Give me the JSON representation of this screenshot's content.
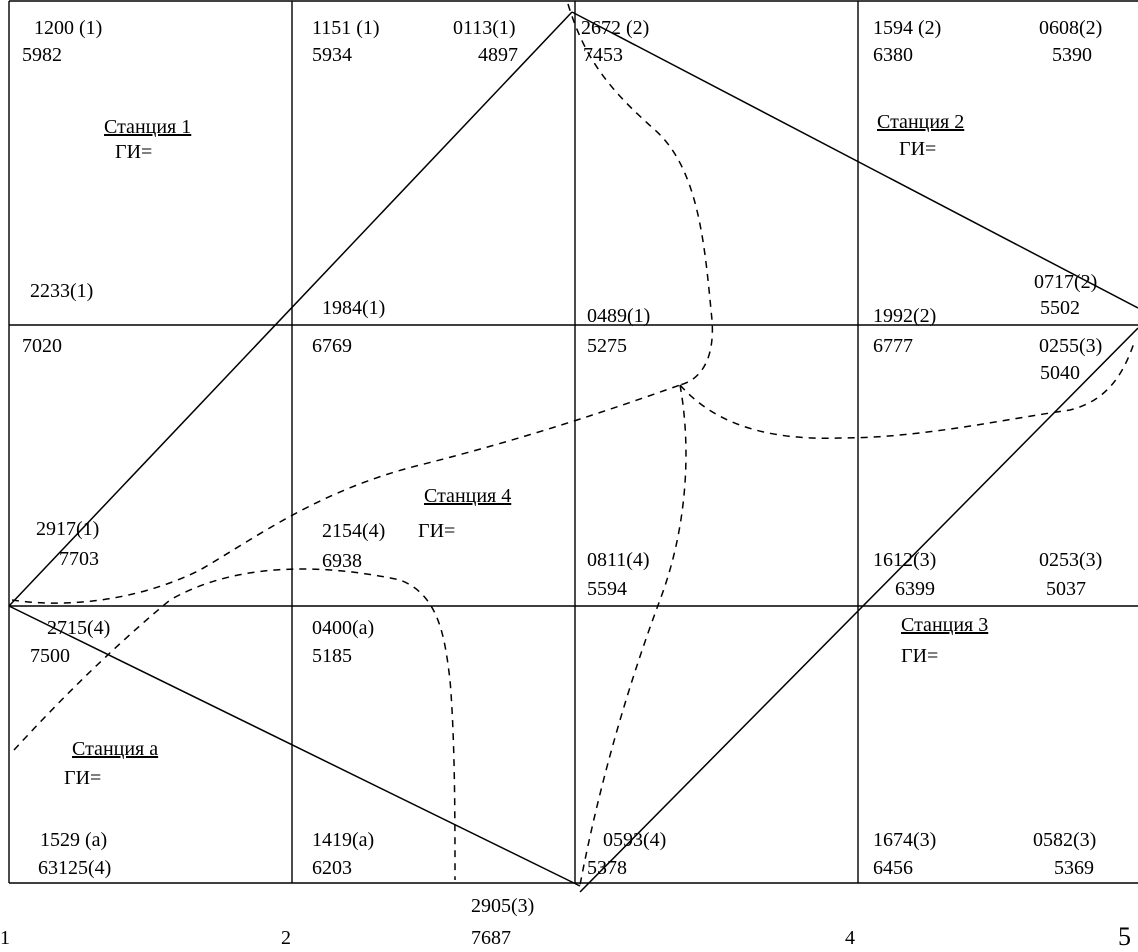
{
  "grid": {
    "points": [
      {
        "id": "p01",
        "top": "1200 (1)",
        "bottom": "5982"
      },
      {
        "id": "p02",
        "top": "1151 (1)",
        "bottom": "5934"
      },
      {
        "id": "p03",
        "top": "0113(1)",
        "bottom": "4897"
      },
      {
        "id": "p04",
        "top": "2672 (2)",
        "bottom": "7453"
      },
      {
        "id": "p05",
        "top": "1594 (2)",
        "bottom": "6380"
      },
      {
        "id": "p06",
        "top": "0608(2)",
        "bottom": "5390"
      },
      {
        "id": "p07",
        "top": "2233(1)",
        "bottom": "7020"
      },
      {
        "id": "p08",
        "top": "1984(1)",
        "bottom": "6769"
      },
      {
        "id": "p09",
        "top": "0489(1)",
        "bottom": "5275"
      },
      {
        "id": "p10",
        "top": "1992(2)",
        "bottom": "6777"
      },
      {
        "id": "p11",
        "top": "0717(2)",
        "bottom": "5502"
      },
      {
        "id": "p12",
        "top": "0255(3)",
        "bottom": "5040"
      },
      {
        "id": "p13",
        "top": "2917(1)",
        "bottom": "7703"
      },
      {
        "id": "p14",
        "top": "2154(4)",
        "bottom": "6938"
      },
      {
        "id": "p15",
        "top": "0811(4)",
        "bottom": "5594"
      },
      {
        "id": "p16",
        "top": "1612(3)",
        "bottom": "6399"
      },
      {
        "id": "p17",
        "top": "0253(3)",
        "bottom": "5037"
      },
      {
        "id": "p18",
        "top": "2715(4)",
        "bottom": "7500"
      },
      {
        "id": "p19",
        "top": "0400(a)",
        "bottom": "5185"
      },
      {
        "id": "p20",
        "top": "1529 (a)",
        "bottom": "63125(4)"
      },
      {
        "id": "p21",
        "top": "1419(a)",
        "bottom": "6203"
      },
      {
        "id": "p22",
        "top": "0593(4)",
        "bottom": "5378"
      },
      {
        "id": "p23",
        "top": "1674(3)",
        "bottom": "6456"
      },
      {
        "id": "p24",
        "top": "0582(3)",
        "bottom": "5369"
      },
      {
        "id": "p25",
        "top": "2905(3)",
        "bottom": "7687"
      }
    ]
  },
  "stations": [
    {
      "id": "st1",
      "name": "Станция 1",
      "gi": "ГИ="
    },
    {
      "id": "st2",
      "name": "Станция 2",
      "gi": "ГИ="
    },
    {
      "id": "st3",
      "name": "Станция 3",
      "gi": "ГИ="
    },
    {
      "id": "st4",
      "name": "Станция 4",
      "gi": "ГИ="
    },
    {
      "id": "sta",
      "name": "Станция а",
      "gi": "ГИ="
    }
  ],
  "column_numbers": [
    "1",
    "2",
    "4",
    "5"
  ]
}
